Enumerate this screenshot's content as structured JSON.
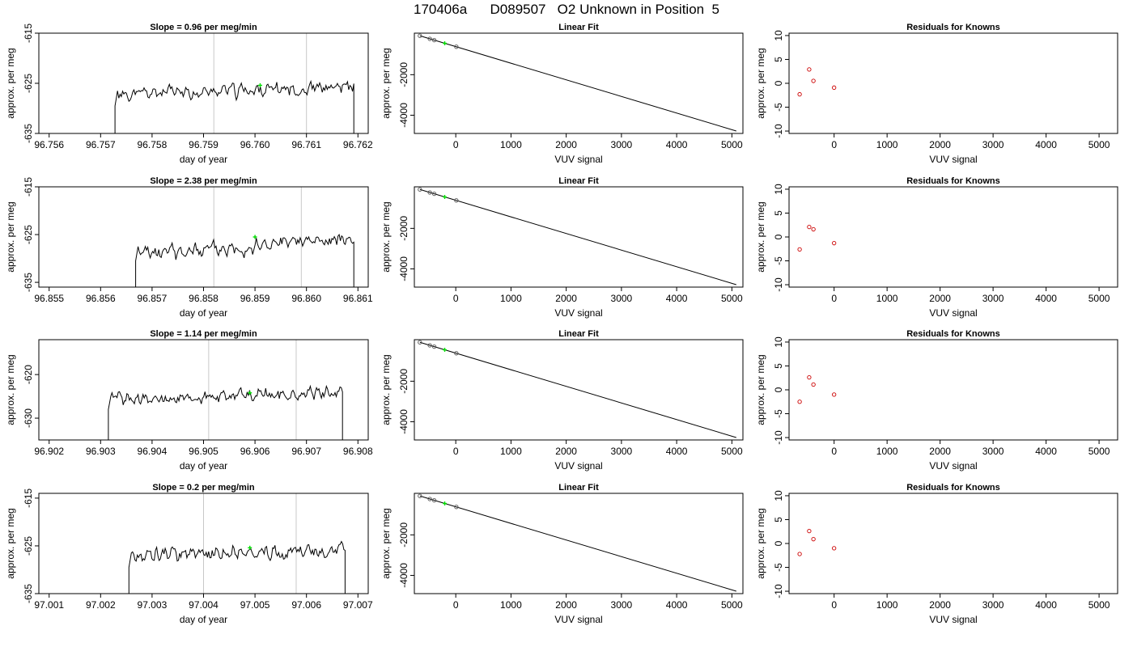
{
  "page": {
    "title": "170406a      D089507   O2 Unknown in Position  5"
  },
  "colors": {
    "trace": "#000000",
    "marker": "#00dd00",
    "residual": "#cc0000",
    "vline": "#c8c8c8"
  },
  "chart_data": [
    {
      "type": "line",
      "row": 0,
      "col": 0,
      "title": "Slope =  0.96  per meg/min",
      "xlabel": "day of year",
      "ylabel": "approx. per meg",
      "xlim": [
        96.7558,
        96.7622
      ],
      "ylim": [
        -635,
        -615
      ],
      "xticks": [
        96.756,
        96.757,
        96.758,
        96.759,
        96.76,
        96.761,
        96.762
      ],
      "xtick_labels": [
        "96.756",
        "96.757",
        "96.758",
        "96.759",
        "96.760",
        "96.761",
        "96.762"
      ],
      "yticks": [
        -635,
        -625,
        -615
      ],
      "ytick_labels": [
        "-635",
        "-625",
        "-615"
      ],
      "vlines": [
        96.7592,
        96.761
      ],
      "marker": [
        96.7601,
        -625.4
      ],
      "trace": {
        "x_start": 96.75728,
        "x_end": 96.76192,
        "n": 190,
        "base": -626.5,
        "slope": 1.5,
        "amp": 1.7,
        "seed": 11
      }
    },
    {
      "type": "line",
      "row": 0,
      "col": 1,
      "title": "Linear Fit",
      "xlabel": "VUV signal",
      "ylabel": "approx. per meg",
      "xlim": [
        -750,
        5200
      ],
      "ylim": [
        -4900,
        50
      ],
      "xticks": [
        0,
        1000,
        2000,
        3000,
        4000,
        5000
      ],
      "xtick_labels": [
        "0",
        "1000",
        "2000",
        "3000",
        "4000",
        "5000"
      ],
      "yticks": [
        -4000,
        -2000
      ],
      "ytick_labels": [
        "-4000",
        "-2000"
      ],
      "fit_line": [
        [
          -650,
          -80
        ],
        [
          5080,
          -4780
        ]
      ],
      "points": [
        [
          -650,
          -80
        ],
        [
          -470,
          -228
        ],
        [
          -390,
          -293
        ],
        [
          10,
          -621
        ]
      ],
      "marker": [
        -200,
        -450
      ]
    },
    {
      "type": "scatter",
      "row": 0,
      "col": 2,
      "title": "Residuals for Knowns",
      "xlabel": "VUV signal",
      "ylabel": "approx. per meg",
      "xlim": [
        -850,
        5350
      ],
      "ylim": [
        -10.5,
        10.5
      ],
      "xticks": [
        0,
        1000,
        2000,
        3000,
        4000,
        5000
      ],
      "xtick_labels": [
        "0",
        "1000",
        "2000",
        "3000",
        "4000",
        "5000"
      ],
      "yticks": [
        -10,
        -5,
        0,
        5,
        10
      ],
      "ytick_labels": [
        "-10",
        "-5",
        "0",
        "5",
        "10"
      ],
      "points": [
        [
          -650,
          -2.3
        ],
        [
          -470,
          2.9
        ],
        [
          -390,
          0.5
        ],
        [
          0,
          -0.9
        ]
      ]
    },
    {
      "type": "line",
      "row": 1,
      "col": 0,
      "title": "Slope =  2.38  per meg/min",
      "xlabel": "day of year",
      "ylabel": "approx. per meg",
      "xlim": [
        96.8548,
        96.8612
      ],
      "ylim": [
        -636,
        -615
      ],
      "xticks": [
        96.855,
        96.856,
        96.857,
        96.858,
        96.859,
        96.86,
        96.861
      ],
      "xtick_labels": [
        "96.855",
        "96.856",
        "96.857",
        "96.858",
        "96.859",
        "96.860",
        "96.861"
      ],
      "yticks": [
        -635,
        -625,
        -615
      ],
      "ytick_labels": [
        "-635",
        "-625",
        "-615"
      ],
      "vlines": [
        96.8582,
        96.8599
      ],
      "marker": [
        96.859,
        -625.5
      ],
      "trace": {
        "x_start": 96.85668,
        "x_end": 96.86092,
        "n": 180,
        "base": -627.5,
        "slope": 3.4,
        "amp": 2.0,
        "seed": 23
      }
    },
    {
      "type": "line",
      "row": 1,
      "col": 1,
      "title": "Linear Fit",
      "xlabel": "VUV signal",
      "ylabel": "approx. per meg",
      "xlim": [
        -750,
        5200
      ],
      "ylim": [
        -4900,
        50
      ],
      "xticks": [
        0,
        1000,
        2000,
        3000,
        4000,
        5000
      ],
      "xtick_labels": [
        "0",
        "1000",
        "2000",
        "3000",
        "4000",
        "5000"
      ],
      "yticks": [
        -4000,
        -2000
      ],
      "ytick_labels": [
        "-4000",
        "-2000"
      ],
      "fit_line": [
        [
          -650,
          -80
        ],
        [
          5080,
          -4780
        ]
      ],
      "points": [
        [
          -650,
          -80
        ],
        [
          -470,
          -228
        ],
        [
          -390,
          -293
        ],
        [
          10,
          -621
        ]
      ],
      "marker": [
        -200,
        -450
      ]
    },
    {
      "type": "scatter",
      "row": 1,
      "col": 2,
      "title": "Residuals for Knowns",
      "xlabel": "VUV signal",
      "ylabel": "approx. per meg",
      "xlim": [
        -850,
        5350
      ],
      "ylim": [
        -10.5,
        10.5
      ],
      "xticks": [
        0,
        1000,
        2000,
        3000,
        4000,
        5000
      ],
      "xtick_labels": [
        "0",
        "1000",
        "2000",
        "3000",
        "4000",
        "5000"
      ],
      "yticks": [
        -10,
        -5,
        0,
        5,
        10
      ],
      "ytick_labels": [
        "-10",
        "-5",
        "0",
        "5",
        "10"
      ],
      "points": [
        [
          -650,
          -2.6
        ],
        [
          -470,
          2.1
        ],
        [
          -390,
          1.6
        ],
        [
          0,
          -1.3
        ]
      ]
    },
    {
      "type": "line",
      "row": 2,
      "col": 0,
      "title": "Slope =  1.14  per meg/min",
      "xlabel": "day of year",
      "ylabel": "approx. per meg",
      "xlim": [
        96.9018,
        96.9082
      ],
      "ylim": [
        -635,
        -612
      ],
      "xticks": [
        96.902,
        96.903,
        96.904,
        96.905,
        96.906,
        96.907,
        96.908
      ],
      "xtick_labels": [
        "96.902",
        "96.903",
        "96.904",
        "96.905",
        "96.906",
        "96.907",
        "96.908"
      ],
      "yticks": [
        -630,
        -620
      ],
      "ytick_labels": [
        "-630",
        "-620"
      ],
      "vlines": [
        96.9051,
        96.9068
      ],
      "marker": [
        96.9059,
        -624.2
      ],
      "trace": {
        "x_start": 96.90315,
        "x_end": 96.9077,
        "n": 190,
        "base": -625.0,
        "slope": 1.8,
        "amp": 1.8,
        "seed": 37
      }
    },
    {
      "type": "line",
      "row": 2,
      "col": 1,
      "title": "Linear Fit",
      "xlabel": "VUV signal",
      "ylabel": "approx. per meg",
      "xlim": [
        -750,
        5200
      ],
      "ylim": [
        -4900,
        50
      ],
      "xticks": [
        0,
        1000,
        2000,
        3000,
        4000,
        5000
      ],
      "xtick_labels": [
        "0",
        "1000",
        "2000",
        "3000",
        "4000",
        "5000"
      ],
      "yticks": [
        -4000,
        -2000
      ],
      "ytick_labels": [
        "-4000",
        "-2000"
      ],
      "fit_line": [
        [
          -650,
          -80
        ],
        [
          5080,
          -4780
        ]
      ],
      "points": [
        [
          -650,
          -80
        ],
        [
          -470,
          -228
        ],
        [
          -390,
          -293
        ],
        [
          10,
          -621
        ]
      ],
      "marker": [
        -200,
        -450
      ]
    },
    {
      "type": "scatter",
      "row": 2,
      "col": 2,
      "title": "Residuals for Knowns",
      "xlabel": "VUV signal",
      "ylabel": "approx. per meg",
      "xlim": [
        -850,
        5350
      ],
      "ylim": [
        -10.5,
        10.5
      ],
      "xticks": [
        0,
        1000,
        2000,
        3000,
        4000,
        5000
      ],
      "xtick_labels": [
        "0",
        "1000",
        "2000",
        "3000",
        "4000",
        "5000"
      ],
      "yticks": [
        -10,
        -5,
        0,
        5,
        10
      ],
      "ytick_labels": [
        "-10",
        "-5",
        "0",
        "5",
        "10"
      ],
      "points": [
        [
          -650,
          -2.5
        ],
        [
          -470,
          2.6
        ],
        [
          -390,
          1.1
        ],
        [
          0,
          -1.0
        ]
      ]
    },
    {
      "type": "line",
      "row": 3,
      "col": 0,
      "title": "Slope =  0.2  per meg/min",
      "xlabel": "day of year",
      "ylabel": "approx. per meg",
      "xlim": [
        97.0008,
        97.0072
      ],
      "ylim": [
        -635,
        -614
      ],
      "xticks": [
        97.001,
        97.002,
        97.003,
        97.004,
        97.005,
        97.006,
        97.007
      ],
      "xtick_labels": [
        "97.001",
        "97.002",
        "97.003",
        "97.004",
        "97.005",
        "97.006",
        "97.007"
      ],
      "yticks": [
        -635,
        -625,
        -615
      ],
      "ytick_labels": [
        "-635",
        "-625",
        "-615"
      ],
      "vlines": [
        97.004,
        97.0058
      ],
      "marker": [
        97.0049,
        -625.4
      ],
      "trace": {
        "x_start": 97.00255,
        "x_end": 97.00675,
        "n": 180,
        "base": -626.5,
        "slope": 0.6,
        "amp": 2.0,
        "seed": 53
      }
    },
    {
      "type": "line",
      "row": 3,
      "col": 1,
      "title": "Linear Fit",
      "xlabel": "VUV signal",
      "ylabel": "approx. per meg",
      "xlim": [
        -750,
        5200
      ],
      "ylim": [
        -4900,
        50
      ],
      "xticks": [
        0,
        1000,
        2000,
        3000,
        4000,
        5000
      ],
      "xtick_labels": [
        "0",
        "1000",
        "2000",
        "3000",
        "4000",
        "5000"
      ],
      "yticks": [
        -4000,
        -2000
      ],
      "ytick_labels": [
        "-4000",
        "-2000"
      ],
      "fit_line": [
        [
          -650,
          -80
        ],
        [
          5080,
          -4780
        ]
      ],
      "points": [
        [
          -650,
          -80
        ],
        [
          -470,
          -228
        ],
        [
          -390,
          -293
        ],
        [
          10,
          -621
        ]
      ],
      "marker": [
        -200,
        -450
      ]
    },
    {
      "type": "scatter",
      "row": 3,
      "col": 2,
      "title": "Residuals for Knowns",
      "xlabel": "VUV signal",
      "ylabel": "approx. per meg",
      "xlim": [
        -850,
        5350
      ],
      "ylim": [
        -10.5,
        10.5
      ],
      "xticks": [
        0,
        1000,
        2000,
        3000,
        4000,
        5000
      ],
      "xtick_labels": [
        "0",
        "1000",
        "2000",
        "3000",
        "4000",
        "5000"
      ],
      "yticks": [
        -10,
        -5,
        0,
        5,
        10
      ],
      "ytick_labels": [
        "-10",
        "-5",
        "0",
        "5",
        "10"
      ],
      "points": [
        [
          -650,
          -2.2
        ],
        [
          -470,
          2.6
        ],
        [
          -390,
          0.9
        ],
        [
          0,
          -1.0
        ]
      ]
    }
  ]
}
